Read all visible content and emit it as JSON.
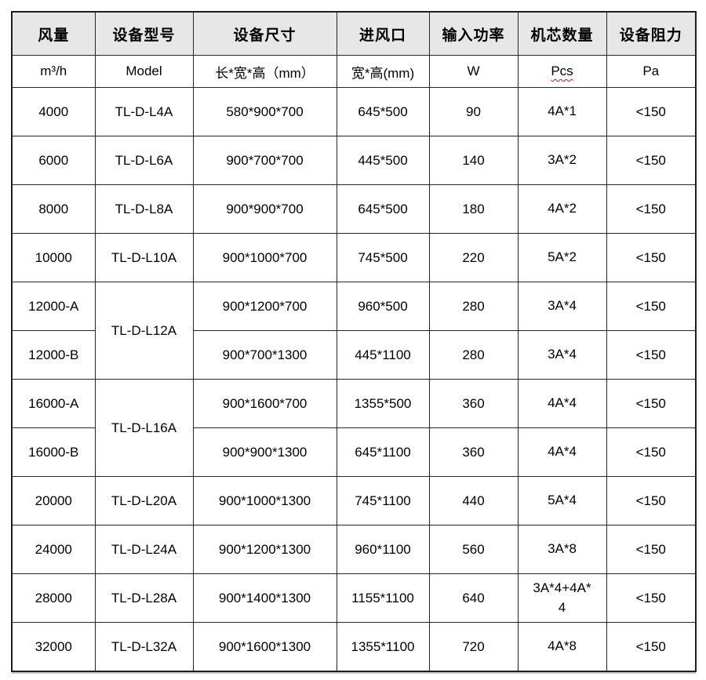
{
  "colors": {
    "header_bg": "#e7e7e7",
    "border": "#262626",
    "text": "#000000",
    "spellcheck_underline": "#ff0000"
  },
  "table": {
    "headers": [
      {
        "key": "airflow",
        "label": "风量",
        "unit": "m³/h"
      },
      {
        "key": "model",
        "label": "设备型号",
        "unit": "Model"
      },
      {
        "key": "dims",
        "label": "设备尺寸",
        "unit": "长*宽*高（mm）"
      },
      {
        "key": "inlet",
        "label": "进风口",
        "unit": "宽*高(mm)"
      },
      {
        "key": "power",
        "label": "输入功率",
        "unit": "W"
      },
      {
        "key": "cores",
        "label": "机芯数量",
        "unit": "Pcs",
        "unit_misspelled": true
      },
      {
        "key": "resistance",
        "label": "设备阻力",
        "unit": "Pa"
      }
    ],
    "rows": [
      {
        "airflow": "4000",
        "model": "TL-D-L4A",
        "model_rowspan": 1,
        "dims": "580*900*700",
        "inlet": "645*500",
        "power": "90",
        "cores": "4A*1",
        "resistance": "<150"
      },
      {
        "airflow": "6000",
        "model": "TL-D-L6A",
        "model_rowspan": 1,
        "dims": "900*700*700",
        "inlet": "445*500",
        "power": "140",
        "cores": "3A*2",
        "resistance": "<150"
      },
      {
        "airflow": "8000",
        "model": "TL-D-L8A",
        "model_rowspan": 1,
        "dims": "900*900*700",
        "inlet": "645*500",
        "power": "180",
        "cores": "4A*2",
        "resistance": "<150"
      },
      {
        "airflow": "10000",
        "model": "TL-D-L10A",
        "model_rowspan": 1,
        "dims": "900*1000*700",
        "inlet": "745*500",
        "power": "220",
        "cores": "5A*2",
        "resistance": "<150"
      },
      {
        "airflow": "12000-A",
        "model": "TL-D-L12A",
        "model_rowspan": 2,
        "dims": "900*1200*700",
        "inlet": "960*500",
        "power": "280",
        "cores": "3A*4",
        "resistance": "<150"
      },
      {
        "airflow": "12000-B",
        "model": null,
        "dims": "900*700*1300",
        "inlet": "445*1100",
        "power": "280",
        "cores": "3A*4",
        "resistance": "<150"
      },
      {
        "airflow": "16000-A",
        "model": "TL-D-L16A",
        "model_rowspan": 2,
        "dims": "900*1600*700",
        "inlet": "1355*500",
        "power": "360",
        "cores": "4A*4",
        "resistance": "<150"
      },
      {
        "airflow": "16000-B",
        "model": null,
        "dims": "900*900*1300",
        "inlet": "645*1100",
        "power": "360",
        "cores": "4A*4",
        "resistance": "<150"
      },
      {
        "airflow": "20000",
        "model": "TL-D-L20A",
        "model_rowspan": 1,
        "dims": "900*1000*1300",
        "inlet": "745*1100",
        "power": "440",
        "cores": "5A*4",
        "resistance": "<150"
      },
      {
        "airflow": "24000",
        "model": "TL-D-L24A",
        "model_rowspan": 1,
        "dims": "900*1200*1300",
        "inlet": "960*1100",
        "power": "560",
        "cores": "3A*8",
        "resistance": "<150"
      },
      {
        "airflow": "28000",
        "model": "TL-D-L28A",
        "model_rowspan": 1,
        "dims": "900*1400*1300",
        "inlet": "1155*1100",
        "power": "640",
        "cores": "3A*4+4A*4",
        "resistance": "<150"
      },
      {
        "airflow": "32000",
        "model": "TL-D-L32A",
        "model_rowspan": 1,
        "dims": "900*1600*1300",
        "inlet": "1355*1100",
        "power": "720",
        "cores": "4A*8",
        "resistance": "<150"
      }
    ]
  }
}
